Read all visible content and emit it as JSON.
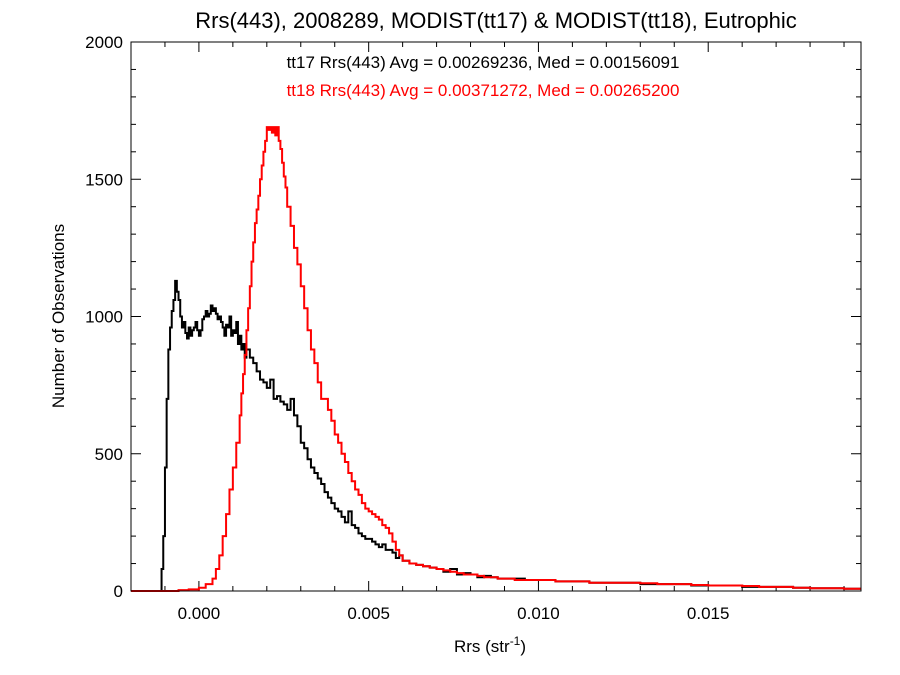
{
  "chart_data": {
    "type": "line",
    "step": true,
    "title": "Rrs(443), 2008289, MODIST(tt17) & MODIST(tt18), Eutrophic",
    "xlabel_base": "Rrs (str",
    "xlabel_sup": "-1",
    "xlabel_end": ")",
    "ylabel": "Number of Observations",
    "xlim": [
      -0.002,
      0.0195
    ],
    "ylim": [
      0,
      2000
    ],
    "x_ticks": [
      {
        "value": 0.0,
        "label": "0.000"
      },
      {
        "value": 0.005,
        "label": "0.005"
      },
      {
        "value": 0.01,
        "label": "0.010"
      },
      {
        "value": 0.015,
        "label": "0.015"
      }
    ],
    "y_ticks": [
      {
        "value": 0,
        "label": "0"
      },
      {
        "value": 500,
        "label": "500"
      },
      {
        "value": 1000,
        "label": "1000"
      },
      {
        "value": 1500,
        "label": "1500"
      },
      {
        "value": 2000,
        "label": "2000"
      }
    ],
    "x_minor_step": 0.001,
    "y_minor_step": 100,
    "annotations": [
      {
        "text": "tt17 Rrs(443) Avg = 0.00269236, Med = 0.00156091",
        "color": "#000000"
      },
      {
        "text": "tt18 Rrs(443) Avg = 0.00371272, Med = 0.00265200",
        "color": "#ff0000"
      }
    ],
    "series": [
      {
        "name": "tt17",
        "color": "#000000",
        "points": [
          [
            -0.002,
            0
          ],
          [
            -0.0012,
            0
          ],
          [
            -0.0011,
            80
          ],
          [
            -0.00105,
            200
          ],
          [
            -0.001,
            450
          ],
          [
            -0.00095,
            700
          ],
          [
            -0.0009,
            880
          ],
          [
            -0.00085,
            960
          ],
          [
            -0.0008,
            1020
          ],
          [
            -0.00075,
            1060
          ],
          [
            -0.0007,
            1130
          ],
          [
            -0.00065,
            1090
          ],
          [
            -0.0006,
            1060
          ],
          [
            -0.00055,
            1000
          ],
          [
            -0.0005,
            960
          ],
          [
            -0.00045,
            980
          ],
          [
            -0.0004,
            940
          ],
          [
            -0.00035,
            920
          ],
          [
            -0.0003,
            960
          ],
          [
            -0.00025,
            930
          ],
          [
            -0.0002,
            950
          ],
          [
            -0.00015,
            960
          ],
          [
            -0.0001,
            980
          ],
          [
            -5e-05,
            950
          ],
          [
            0.0,
            930
          ],
          [
            5e-05,
            950
          ],
          [
            0.0001,
            990
          ],
          [
            0.00015,
            1000
          ],
          [
            0.0002,
            1020
          ],
          [
            0.00025,
            1000
          ],
          [
            0.0003,
            1010
          ],
          [
            0.00035,
            1040
          ],
          [
            0.0004,
            1020
          ],
          [
            0.00045,
            1030
          ],
          [
            0.0005,
            1010
          ],
          [
            0.00055,
            990
          ],
          [
            0.0006,
            1000
          ],
          [
            0.00065,
            980
          ],
          [
            0.0007,
            960
          ],
          [
            0.00075,
            930
          ],
          [
            0.0008,
            970
          ],
          [
            0.00085,
            960
          ],
          [
            0.0009,
            1000
          ],
          [
            0.00095,
            930
          ],
          [
            0.001,
            950
          ],
          [
            0.00105,
            940
          ],
          [
            0.0011,
            980
          ],
          [
            0.00115,
            900
          ],
          [
            0.0012,
            930
          ],
          [
            0.00125,
            880
          ],
          [
            0.0013,
            900
          ],
          [
            0.00135,
            850
          ],
          [
            0.0014,
            880
          ],
          [
            0.0015,
            850
          ],
          [
            0.0016,
            830
          ],
          [
            0.0017,
            800
          ],
          [
            0.0018,
            770
          ],
          [
            0.0019,
            760
          ],
          [
            0.002,
            740
          ],
          [
            0.0021,
            770
          ],
          [
            0.0022,
            700
          ],
          [
            0.0023,
            710
          ],
          [
            0.0024,
            690
          ],
          [
            0.0025,
            680
          ],
          [
            0.0026,
            660
          ],
          [
            0.0027,
            700
          ],
          [
            0.0028,
            640
          ],
          [
            0.0029,
            600
          ],
          [
            0.003,
            540
          ],
          [
            0.0031,
            520
          ],
          [
            0.0032,
            480
          ],
          [
            0.0033,
            450
          ],
          [
            0.0034,
            430
          ],
          [
            0.0035,
            410
          ],
          [
            0.0036,
            390
          ],
          [
            0.0037,
            360
          ],
          [
            0.0038,
            340
          ],
          [
            0.0039,
            320
          ],
          [
            0.004,
            300
          ],
          [
            0.0041,
            290
          ],
          [
            0.0042,
            270
          ],
          [
            0.0043,
            250
          ],
          [
            0.0044,
            290
          ],
          [
            0.0045,
            240
          ],
          [
            0.0046,
            230
          ],
          [
            0.0047,
            210
          ],
          [
            0.0048,
            200
          ],
          [
            0.0049,
            190
          ],
          [
            0.005,
            190
          ],
          [
            0.0051,
            180
          ],
          [
            0.0052,
            170
          ],
          [
            0.0053,
            160
          ],
          [
            0.0054,
            170
          ],
          [
            0.0055,
            150
          ],
          [
            0.0056,
            150
          ],
          [
            0.0057,
            140
          ],
          [
            0.0058,
            120
          ],
          [
            0.0059,
            130
          ],
          [
            0.006,
            110
          ],
          [
            0.0062,
            100
          ],
          [
            0.0064,
            95
          ],
          [
            0.0066,
            90
          ],
          [
            0.0068,
            85
          ],
          [
            0.007,
            80
          ],
          [
            0.0072,
            70
          ],
          [
            0.0074,
            80
          ],
          [
            0.0076,
            60
          ],
          [
            0.0078,
            65
          ],
          [
            0.008,
            60
          ],
          [
            0.0082,
            50
          ],
          [
            0.0084,
            55
          ],
          [
            0.0086,
            50
          ],
          [
            0.0088,
            45
          ],
          [
            0.009,
            45
          ],
          [
            0.0093,
            45
          ],
          [
            0.0096,
            40
          ],
          [
            0.01,
            40
          ],
          [
            0.0105,
            35
          ],
          [
            0.011,
            35
          ],
          [
            0.0115,
            30
          ],
          [
            0.012,
            30
          ],
          [
            0.0125,
            30
          ],
          [
            0.013,
            25
          ],
          [
            0.0135,
            25
          ],
          [
            0.014,
            25
          ],
          [
            0.0145,
            20
          ],
          [
            0.015,
            20
          ],
          [
            0.0155,
            20
          ],
          [
            0.016,
            15
          ],
          [
            0.0165,
            15
          ],
          [
            0.017,
            15
          ],
          [
            0.0175,
            12
          ],
          [
            0.018,
            10
          ],
          [
            0.0185,
            10
          ],
          [
            0.019,
            8
          ],
          [
            0.0195,
            8
          ]
        ]
      },
      {
        "name": "tt18",
        "color": "#ff0000",
        "points": [
          [
            -0.002,
            0
          ],
          [
            -0.001,
            0
          ],
          [
            -0.0006,
            3
          ],
          [
            -0.0003,
            6
          ],
          [
            0.0,
            12
          ],
          [
            0.0002,
            25
          ],
          [
            0.0004,
            45
          ],
          [
            0.0005,
            80
          ],
          [
            0.0006,
            130
          ],
          [
            0.0007,
            200
          ],
          [
            0.0008,
            280
          ],
          [
            0.0009,
            370
          ],
          [
            0.001,
            450
          ],
          [
            0.0011,
            540
          ],
          [
            0.0012,
            640
          ],
          [
            0.00125,
            720
          ],
          [
            0.0013,
            790
          ],
          [
            0.00135,
            860
          ],
          [
            0.0014,
            950
          ],
          [
            0.00145,
            1030
          ],
          [
            0.0015,
            1110
          ],
          [
            0.00155,
            1200
          ],
          [
            0.0016,
            1270
          ],
          [
            0.00165,
            1340
          ],
          [
            0.0017,
            1390
          ],
          [
            0.00175,
            1440
          ],
          [
            0.0018,
            1500
          ],
          [
            0.00185,
            1550
          ],
          [
            0.0019,
            1600
          ],
          [
            0.00195,
            1640
          ],
          [
            0.002,
            1690
          ],
          [
            0.00205,
            1680
          ],
          [
            0.0021,
            1690
          ],
          [
            0.00215,
            1670
          ],
          [
            0.0022,
            1690
          ],
          [
            0.00225,
            1660
          ],
          [
            0.0023,
            1690
          ],
          [
            0.00235,
            1640
          ],
          [
            0.0024,
            1610
          ],
          [
            0.00245,
            1560
          ],
          [
            0.0025,
            1510
          ],
          [
            0.00255,
            1470
          ],
          [
            0.0026,
            1400
          ],
          [
            0.0027,
            1330
          ],
          [
            0.0028,
            1250
          ],
          [
            0.0029,
            1190
          ],
          [
            0.003,
            1110
          ],
          [
            0.0031,
            1030
          ],
          [
            0.0032,
            950
          ],
          [
            0.0033,
            880
          ],
          [
            0.0034,
            830
          ],
          [
            0.0035,
            760
          ],
          [
            0.0036,
            700
          ],
          [
            0.0037,
            700
          ],
          [
            0.0038,
            660
          ],
          [
            0.0039,
            620
          ],
          [
            0.004,
            570
          ],
          [
            0.0041,
            540
          ],
          [
            0.0042,
            500
          ],
          [
            0.0043,
            470
          ],
          [
            0.0044,
            430
          ],
          [
            0.0045,
            400
          ],
          [
            0.0046,
            370
          ],
          [
            0.0047,
            350
          ],
          [
            0.0048,
            320
          ],
          [
            0.0049,
            300
          ],
          [
            0.005,
            290
          ],
          [
            0.0051,
            280
          ],
          [
            0.0052,
            270
          ],
          [
            0.0053,
            260
          ],
          [
            0.0054,
            240
          ],
          [
            0.0055,
            230
          ],
          [
            0.0056,
            210
          ],
          [
            0.0057,
            180
          ],
          [
            0.0058,
            150
          ],
          [
            0.0059,
            130
          ],
          [
            0.006,
            110
          ],
          [
            0.0062,
            100
          ],
          [
            0.0064,
            95
          ],
          [
            0.0066,
            90
          ],
          [
            0.0068,
            85
          ],
          [
            0.007,
            80
          ],
          [
            0.0072,
            75
          ],
          [
            0.0074,
            70
          ],
          [
            0.0076,
            65
          ],
          [
            0.0078,
            60
          ],
          [
            0.008,
            60
          ],
          [
            0.0082,
            55
          ],
          [
            0.0084,
            50
          ],
          [
            0.0086,
            50
          ],
          [
            0.0088,
            45
          ],
          [
            0.009,
            45
          ],
          [
            0.0093,
            40
          ],
          [
            0.0096,
            40
          ],
          [
            0.01,
            40
          ],
          [
            0.0105,
            35
          ],
          [
            0.011,
            35
          ],
          [
            0.0115,
            30
          ],
          [
            0.012,
            30
          ],
          [
            0.0125,
            30
          ],
          [
            0.013,
            28
          ],
          [
            0.0135,
            25
          ],
          [
            0.014,
            25
          ],
          [
            0.0145,
            22
          ],
          [
            0.015,
            20
          ],
          [
            0.0155,
            20
          ],
          [
            0.016,
            18
          ],
          [
            0.0165,
            15
          ],
          [
            0.017,
            15
          ],
          [
            0.0175,
            12
          ],
          [
            0.018,
            10
          ],
          [
            0.0185,
            10
          ],
          [
            0.019,
            8
          ],
          [
            0.0195,
            8
          ]
        ]
      }
    ]
  }
}
